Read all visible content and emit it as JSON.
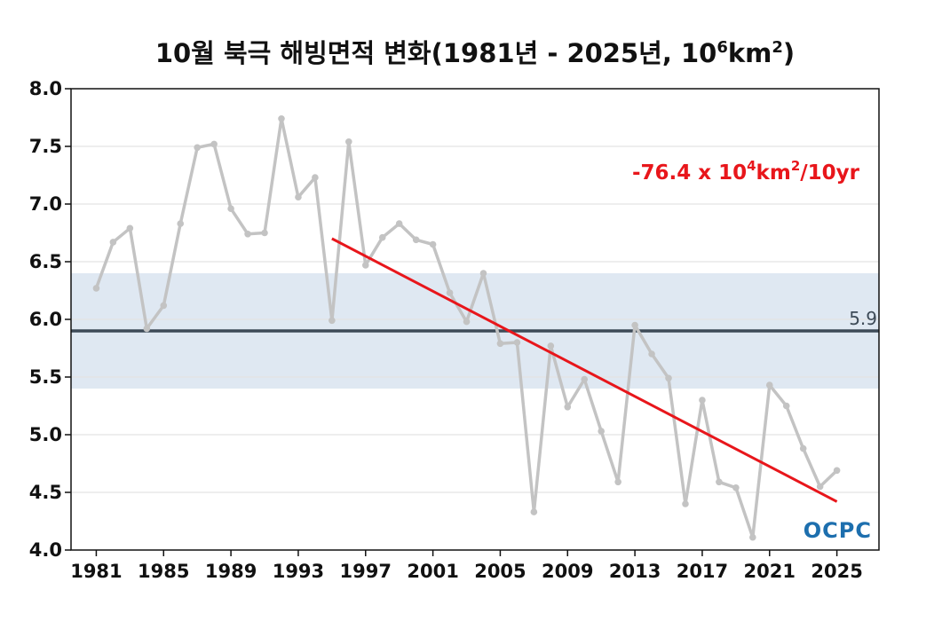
{
  "chart_data": {
    "type": "line",
    "title": "10월 북극 해빙면적 변화(1981년 - 2025년, 10",
    "title_sup1": "6",
    "title_mid": "km",
    "title_sup2": "2",
    "title_end": ")",
    "xlabel": "",
    "ylabel": "",
    "ylim": [
      4.0,
      8.0
    ],
    "xlim": [
      1979.5,
      2027.5
    ],
    "y_ticks": [
      "4.0",
      "4.5",
      "5.0",
      "5.5",
      "6.0",
      "6.5",
      "7.0",
      "7.5",
      "8.0"
    ],
    "x_ticks": [
      "1981",
      "1985",
      "1989",
      "1993",
      "1997",
      "2001",
      "2005",
      "2009",
      "2013",
      "2017",
      "2021",
      "2025"
    ],
    "grid": "horizontal",
    "series": [
      {
        "x": [
          1981,
          1982,
          1983,
          1984,
          1985,
          1986,
          1987,
          1988,
          1989,
          1990,
          1991,
          1992,
          1993,
          1994,
          1995,
          1996,
          1997,
          1998,
          1999,
          2000,
          2001,
          2002,
          2003,
          2004,
          2005,
          2006,
          2007,
          2008,
          2009,
          2010,
          2011,
          2012,
          2013,
          2014,
          2015,
          2016,
          2017,
          2018,
          2019,
          2020,
          2021,
          2022,
          2023,
          2024,
          2025
        ],
        "values": [
          6.27,
          6.67,
          6.79,
          5.92,
          6.12,
          6.83,
          7.49,
          7.52,
          6.96,
          6.74,
          6.75,
          7.74,
          7.06,
          7.23,
          5.99,
          7.54,
          6.47,
          6.71,
          6.83,
          6.69,
          6.65,
          6.23,
          5.98,
          6.4,
          5.79,
          5.8,
          4.33,
          5.77,
          5.24,
          5.48,
          5.03,
          4.59,
          5.95,
          5.7,
          5.49,
          4.4,
          5.3,
          4.59,
          4.54,
          4.11,
          5.43,
          5.25,
          4.88,
          4.55,
          4.69
        ],
        "color": "#c3c3c3"
      }
    ],
    "trend": {
      "x": [
        1995,
        2025
      ],
      "values": [
        6.7,
        4.42
      ],
      "color": "#e8161b",
      "label": "-76.4 x 10",
      "label_sup1": "4",
      "label_mid": "km",
      "label_sup2": "2",
      "label_end": "/10yr"
    },
    "mean": {
      "value": 5.9,
      "label": "5.9",
      "color": "#3d4a57"
    },
    "band": {
      "range": [
        5.4,
        6.4
      ],
      "color": "#dfe8f2"
    },
    "logo": "OCPC"
  }
}
